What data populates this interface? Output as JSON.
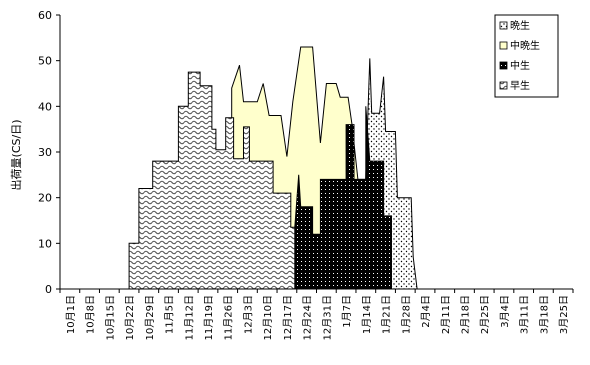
{
  "chart_data": {
    "type": "area",
    "title": "",
    "xlabel": "",
    "ylabel": "出荷量(CS/日)",
    "ylim": [
      0,
      60
    ],
    "yticks": [
      0,
      10,
      20,
      30,
      40,
      50,
      60
    ],
    "categories": [
      "10月1日",
      "10月8日",
      "10月15日",
      "10月22日",
      "10月29日",
      "11月5日",
      "11月12日",
      "11月19日",
      "11月26日",
      "12月3日",
      "12月10日",
      "12月17日",
      "12月24日",
      "12月31日",
      "1月7日",
      "1月14日",
      "1月21日",
      "1月28日",
      "2月4日",
      "2月11日",
      "2月18日",
      "2月25日",
      "3月4日",
      "3月11日",
      "3月18日",
      "3月25日"
    ],
    "series": [
      {
        "name": "早生",
        "color": "#ffffff",
        "pattern": "wave",
        "points": [
          [
            3,
            0
          ],
          [
            3,
            10
          ],
          [
            3.5,
            10
          ],
          [
            3.5,
            22
          ],
          [
            4.2,
            22
          ],
          [
            4.2,
            28
          ],
          [
            5.5,
            28
          ],
          [
            5.5,
            40
          ],
          [
            6,
            40
          ],
          [
            6,
            47.5
          ],
          [
            6.6,
            47.5
          ],
          [
            6.6,
            44.5
          ],
          [
            7.2,
            44.5
          ],
          [
            7.2,
            35
          ],
          [
            7.4,
            35
          ],
          [
            7.4,
            30.5
          ],
          [
            7.9,
            30.5
          ],
          [
            7.9,
            37.5
          ],
          [
            8.3,
            37.5
          ],
          [
            8.3,
            28.5
          ],
          [
            8.8,
            28.5
          ],
          [
            8.8,
            35.5
          ],
          [
            9.1,
            35.5
          ],
          [
            9.1,
            28
          ],
          [
            10.3,
            28
          ],
          [
            10.3,
            21
          ],
          [
            11.2,
            21
          ],
          [
            11.2,
            13.5
          ],
          [
            11.6,
            13.5
          ],
          [
            11.6,
            6.5
          ],
          [
            12.4,
            6.5
          ],
          [
            12.4,
            1
          ],
          [
            12.5,
            0
          ]
        ]
      },
      {
        "name": "中生",
        "color": "#000000",
        "pattern": "dots",
        "points": [
          [
            11.4,
            0
          ],
          [
            11.4,
            13.5
          ],
          [
            11.6,
            25
          ],
          [
            11.7,
            18
          ],
          [
            12.3,
            18
          ],
          [
            12.3,
            12
          ],
          [
            12.7,
            12
          ],
          [
            12.7,
            24
          ],
          [
            14,
            24
          ],
          [
            14,
            36
          ],
          [
            14.4,
            36
          ],
          [
            14.4,
            24
          ],
          [
            15,
            24
          ],
          [
            15,
            40
          ],
          [
            15.2,
            28
          ],
          [
            15.9,
            28
          ],
          [
            15.9,
            16
          ],
          [
            16.3,
            16
          ],
          [
            16.3,
            0
          ]
        ]
      },
      {
        "name": "中晩生",
        "color": "#ffffcc",
        "pattern": "solid",
        "points": [
          [
            8.2,
            0
          ],
          [
            8.2,
            44
          ],
          [
            8.6,
            49
          ],
          [
            8.8,
            41
          ],
          [
            9.5,
            41
          ],
          [
            9.8,
            45
          ],
          [
            10.1,
            38
          ],
          [
            10.7,
            38
          ],
          [
            11,
            29
          ],
          [
            11.3,
            41
          ],
          [
            11.7,
            53
          ],
          [
            12.3,
            53
          ],
          [
            12.7,
            32
          ],
          [
            13,
            45
          ],
          [
            13.5,
            45
          ],
          [
            13.7,
            42
          ],
          [
            14.1,
            42
          ],
          [
            14.3,
            36
          ],
          [
            14.6,
            24
          ],
          [
            15.1,
            24
          ],
          [
            15.1,
            0
          ]
        ]
      },
      {
        "name": "晩生",
        "color": "#ffffff",
        "pattern": "sparse",
        "points": [
          [
            14.8,
            0
          ],
          [
            15.2,
            50.5
          ],
          [
            15.3,
            38.5
          ],
          [
            15.7,
            38.5
          ],
          [
            15.9,
            46.5
          ],
          [
            16,
            34.5
          ],
          [
            16.5,
            34.5
          ],
          [
            16.6,
            20
          ],
          [
            17.3,
            20
          ],
          [
            17.4,
            7
          ],
          [
            17.6,
            0
          ]
        ]
      }
    ],
    "legend": {
      "position": "top-right",
      "entries": [
        "晩生",
        "中晩生",
        "中生",
        "早生"
      ]
    },
    "grid": false
  }
}
